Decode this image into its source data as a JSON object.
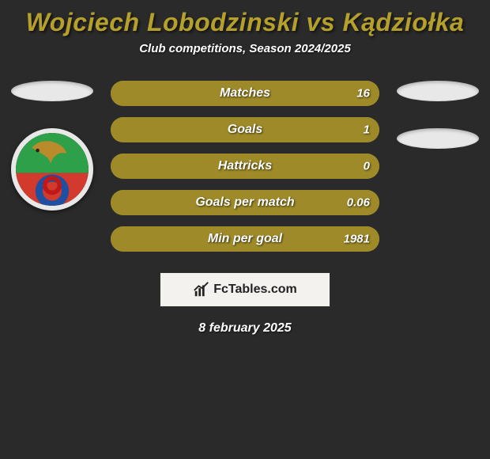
{
  "title_color": "#b5a02c",
  "background_color": "#2a2a2a",
  "text_color": "#ffffff",
  "header": {
    "title": "Wojciech Lobodzinski vs Kądziołka",
    "subtitle": "Club competitions, Season 2024/2025"
  },
  "left": {
    "name_ellipse_color": "#e8e8e8",
    "club_badge": {
      "border_color": "#e8e8e8",
      "bg_top": "#2fa04a",
      "bg_bottom": "#d23a2e",
      "accent": "#1f4fa0"
    }
  },
  "right": {
    "name_ellipse_color": "#e8e8e8",
    "club_ellipse_color": "#e8e8e8"
  },
  "stats": {
    "bar_bg": "#9e8a28",
    "left_color": "#9e8a28",
    "right_color": "#9e8a28",
    "font_size": 16,
    "rows": [
      {
        "label": "Matches",
        "left_val": "",
        "right_val": "16",
        "left_pct": 0,
        "right_pct": 100
      },
      {
        "label": "Goals",
        "left_val": "",
        "right_val": "1",
        "left_pct": 0,
        "right_pct": 100
      },
      {
        "label": "Hattricks",
        "left_val": "",
        "right_val": "0",
        "left_pct": 0,
        "right_pct": 100
      },
      {
        "label": "Goals per match",
        "left_val": "",
        "right_val": "0.06",
        "left_pct": 0,
        "right_pct": 100
      },
      {
        "label": "Min per goal",
        "left_val": "",
        "right_val": "1981",
        "left_pct": 0,
        "right_pct": 100
      }
    ]
  },
  "footer": {
    "brand": "FcTables.com",
    "card_bg": "#f4f2ee",
    "card_border": "#333333",
    "date": "8 february 2025"
  }
}
